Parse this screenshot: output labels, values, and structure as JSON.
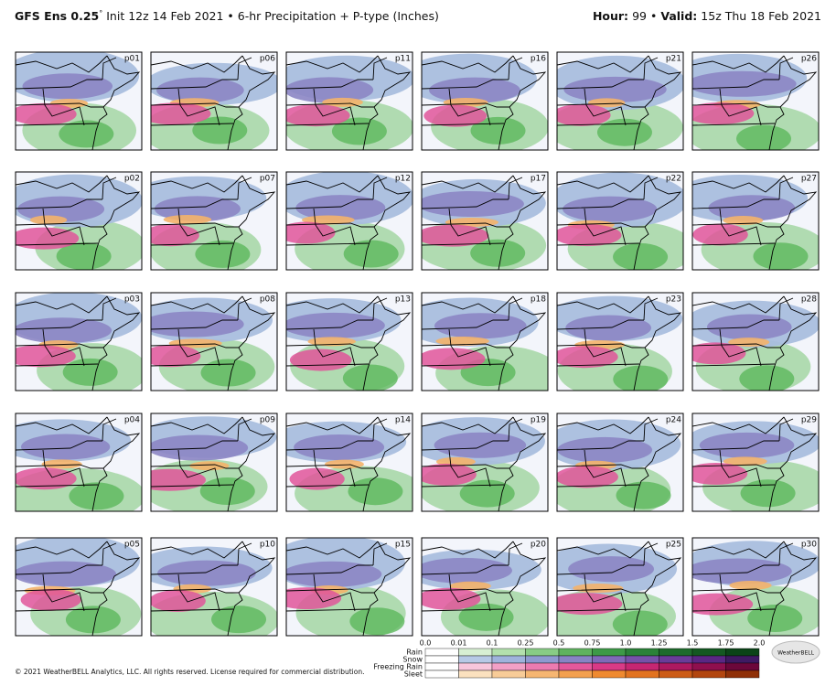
{
  "header": {
    "model": "GFS Ens 0.25",
    "degree": "°",
    "description": "Init 12z 14 Feb 2021 • 6-hr Precipitation + P-type (Inches)",
    "hour_label": "Hour:",
    "hour": "99",
    "separator": "•",
    "valid_label": "Valid:",
    "valid": "15z Thu 18 Feb 2021"
  },
  "panels": [
    [
      "p01",
      "p06",
      "p11",
      "p16",
      "p21",
      "p26"
    ],
    [
      "p02",
      "p07",
      "p12",
      "p17",
      "p22",
      "p27"
    ],
    [
      "p03",
      "p08",
      "p13",
      "p18",
      "p23",
      "p28"
    ],
    [
      "p04",
      "p09",
      "p14",
      "p19",
      "p24",
      "p29"
    ],
    [
      "p05",
      "p10",
      "p15",
      "p20",
      "p25",
      "p30"
    ]
  ],
  "legend": {
    "ticks": [
      "0.0",
      "0.01",
      "0.1",
      "0.25",
      "0.5",
      "0.75",
      "1.0",
      "1.25",
      "1.5",
      "1.75",
      "2.0"
    ],
    "types": [
      "Rain",
      "Snow",
      "Freezing Rain",
      "Sleet"
    ]
  },
  "logo": "WeatherBELL",
  "footer": "© 2021 WeatherBELL Analytics, LLC. All rights reserved. License required for commercial distribution."
}
